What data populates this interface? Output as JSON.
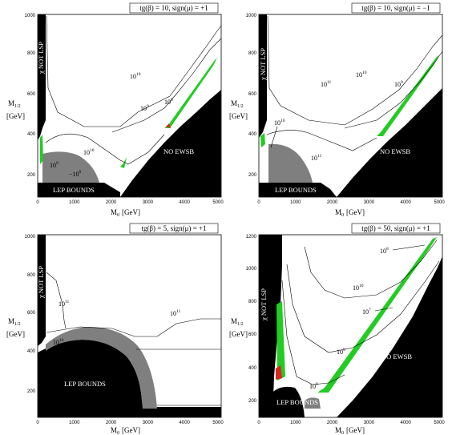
{
  "colors": {
    "excluded": "#000000",
    "lep": "#7f7f7f",
    "band_green": "#22cc22",
    "band_red": "#dd2222",
    "contour": "#000000",
    "background": "#ffffff"
  },
  "chart_data": [
    {
      "type": "contour",
      "panel": "top-left",
      "param_label": "tg(β) = 10, sign(μ) = +1",
      "xlabel": "M",
      "xlabel_sub": "0",
      "xlabel_unit": "[GeV]",
      "ylabel": "M",
      "ylabel_sub": "1/2",
      "ylabel_unit": "[GeV]",
      "xlim": [
        0,
        5000
      ],
      "ylim": [
        100,
        1000
      ],
      "xticks": [
        "0",
        "1000",
        "2000",
        "3000",
        "4000",
        "5000"
      ],
      "yticks": [
        "200",
        "400",
        "600",
        "800",
        "1000"
      ],
      "regions": [
        {
          "name": "χ NOT LSP",
          "kind": "excluded"
        },
        {
          "name": "NO EWSB",
          "kind": "excluded"
        },
        {
          "name": "LEP BOUNDS",
          "kind": "excluded"
        }
      ],
      "contour_labels": [
        "10",
        "10",
        "10",
        "10",
        "10"
      ],
      "contour_exponents": [
        "10",
        "9",
        "8",
        "10",
        "9"
      ],
      "contour_labels_extra": [
        "10"
      ],
      "contour_exponents_extra": [
        "8"
      ]
    },
    {
      "type": "contour",
      "panel": "top-right",
      "param_label": "tg(β) = 10, sign(μ) = −1",
      "xlabel": "M",
      "xlabel_sub": "0",
      "xlabel_unit": "[GeV]",
      "ylabel": "M",
      "ylabel_sub": "1/2",
      "ylabel_unit": "[GeV]",
      "xlim": [
        0,
        5000
      ],
      "ylim": [
        100,
        1000
      ],
      "xticks": [
        "0",
        "1000",
        "2000",
        "3000",
        "4000",
        "5000"
      ],
      "yticks": [
        "200",
        "400",
        "600",
        "800",
        "1000"
      ],
      "regions": [
        {
          "name": "χ NOT LSP",
          "kind": "excluded"
        },
        {
          "name": "NO EWSB",
          "kind": "excluded"
        },
        {
          "name": "LEP BOUNDS",
          "kind": "excluded"
        }
      ],
      "contour_labels": [
        "10",
        "10",
        "10",
        "10",
        "10"
      ],
      "contour_exponents": [
        "11",
        "10",
        "9",
        "10",
        "11"
      ]
    },
    {
      "type": "contour",
      "panel": "bottom-left",
      "param_label": "tg(β) = 5, sign(μ) = +1",
      "xlabel": "M",
      "xlabel_sub": "0",
      "xlabel_unit": "[GeV]",
      "ylabel": "M",
      "ylabel_sub": "1/2",
      "ylabel_unit": "[GeV]",
      "xlim": [
        0,
        5000
      ],
      "ylim": [
        100,
        1000
      ],
      "xticks": [
        "0",
        "1000",
        "2000",
        "3000",
        "4000",
        "5000"
      ],
      "yticks": [
        "200",
        "400",
        "600",
        "800",
        "1000"
      ],
      "regions": [
        {
          "name": "χ NOT LSP",
          "kind": "excluded"
        },
        {
          "name": "LEP BOUNDS",
          "kind": "excluded"
        }
      ],
      "contour_labels": [
        "10",
        "10",
        "10"
      ],
      "contour_exponents": [
        "11",
        "10",
        "11"
      ]
    },
    {
      "type": "contour",
      "panel": "bottom-right",
      "param_label": "tg(β) = 50, sign(μ) = +1",
      "xlabel": "M",
      "xlabel_sub": "0",
      "xlabel_unit": "[GeV]",
      "ylabel": "M",
      "ylabel_sub": "1/2",
      "ylabel_unit": "[GeV]",
      "xlim": [
        0,
        5000
      ],
      "ylim": [
        100,
        1200
      ],
      "xticks": [
        "0",
        "1000",
        "2000",
        "3000",
        "4000",
        "5000"
      ],
      "yticks": [
        "200",
        "400",
        "600",
        "800",
        "1000",
        "1200"
      ],
      "regions": [
        {
          "name": "χ NOT LSP",
          "kind": "excluded"
        },
        {
          "name": "NO EWSB",
          "kind": "excluded"
        },
        {
          "name": "LEP BOUNDS",
          "kind": "excluded"
        }
      ],
      "contour_labels": [
        "10",
        "10",
        "10",
        "10",
        "10"
      ],
      "contour_exponents": [
        "8",
        "10",
        "7",
        "9",
        "8"
      ]
    }
  ]
}
